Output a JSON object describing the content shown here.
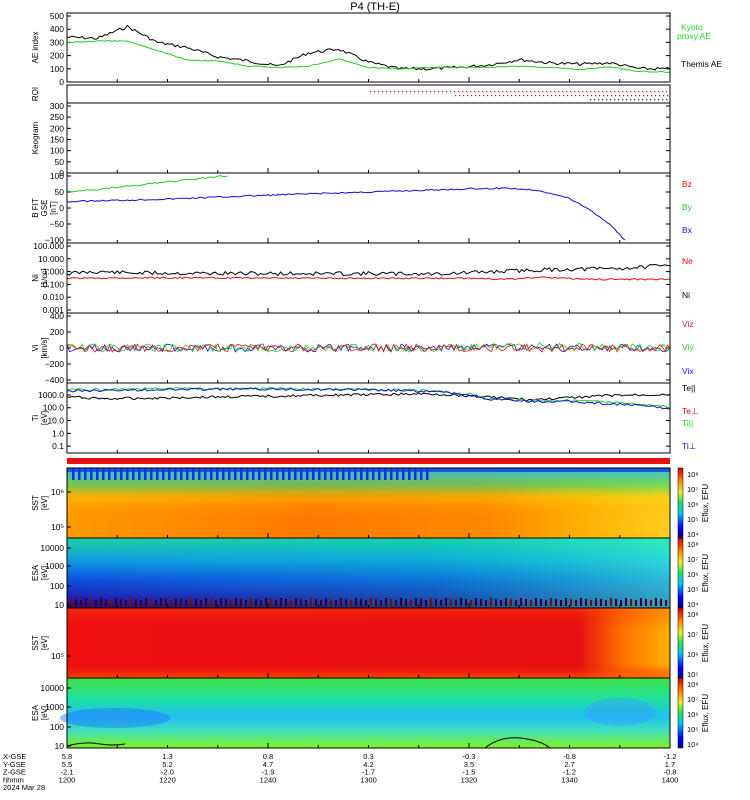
{
  "title": "P4 (TH-E)",
  "colors": {
    "black": "#000000",
    "green": "#22cc22",
    "red": "#e01010",
    "blue": "#1010dd",
    "kyoto": "#22dd22"
  },
  "footer": {
    "row_labels": [
      "X-GSE",
      "Y-GSE",
      "Z-GSE",
      "hhmm",
      "2024 Mar 28"
    ],
    "columns": [
      [
        "5.8",
        "5.5",
        "-2.1",
        "1200"
      ],
      [
        "1.3",
        "5.2",
        "-2.0",
        "1220"
      ],
      [
        "0.8",
        "4.7",
        "-1.9",
        "1240"
      ],
      [
        "0.3",
        "4.2",
        "-1.7",
        "1300"
      ],
      [
        "-0.3",
        "3.5",
        "-1.5",
        "1320"
      ],
      [
        "-0.8",
        "2.7",
        "-1.2",
        "1340"
      ],
      [
        "-1.2",
        "1.7",
        "-0.8",
        "1400"
      ]
    ]
  },
  "colorbar_label": "Eflux, EFU",
  "chart_data": [
    {
      "panel": "ae",
      "type": "line",
      "ylabel": "AE index",
      "ylim": [
        0,
        500
      ],
      "yticks": [
        "500",
        "400",
        "300",
        "200",
        "100",
        "0"
      ],
      "legend": [
        "Kyoto",
        "proxy AE",
        "Themis AE"
      ],
      "series": [
        {
          "name": "Themis AE",
          "color": "black",
          "x": [
            0,
            3,
            6,
            9,
            12,
            15,
            18,
            21,
            24,
            27,
            30,
            33,
            36,
            39,
            42,
            45,
            48,
            51,
            54,
            57,
            60
          ],
          "values": [
            340,
            330,
            420,
            300,
            260,
            190,
            160,
            120,
            220,
            250,
            150,
            100,
            100,
            110,
            130,
            170,
            145,
            135,
            145,
            100,
            100
          ]
        },
        {
          "name": "Kyoto proxy AE",
          "color": "green",
          "x": [
            0,
            3,
            6,
            9,
            12,
            15,
            18,
            21,
            24,
            27,
            30,
            33,
            36,
            39,
            42,
            45,
            48,
            51,
            54,
            57,
            60
          ],
          "values": [
            300,
            310,
            310,
            240,
            165,
            160,
            120,
            110,
            120,
            175,
            110,
            100,
            110,
            110,
            110,
            120,
            110,
            95,
            115,
            80,
            75
          ]
        }
      ]
    },
    {
      "panel": "roi",
      "type": "scatter",
      "ylabel": "ROI",
      "ylim": [
        0,
        1
      ],
      "yticks": []
    },
    {
      "panel": "keogram",
      "type": "heatmap",
      "ylabel": "Keogram",
      "ylim": [
        0,
        300
      ],
      "yticks": [
        "300",
        "250",
        "200",
        "150",
        "100",
        "50",
        "0"
      ]
    },
    {
      "panel": "b",
      "type": "line",
      "ylabel": "B FIT GSE [nT]",
      "ylim": [
        -100,
        100
      ],
      "yticks": [
        "100",
        "50",
        "0",
        "−50",
        "−100"
      ],
      "legend": [
        "Bz",
        "By",
        "Bx"
      ],
      "series": [
        {
          "name": "Bz",
          "color": "red",
          "x": [
            0,
            60
          ],
          "values": [
            0,
            0
          ]
        },
        {
          "name": "By",
          "color": "green",
          "x": [
            0,
            3,
            6,
            9,
            12,
            15,
            16
          ],
          "values": [
            50,
            58,
            68,
            78,
            88,
            98,
            104
          ]
        },
        {
          "name": "Bx",
          "color": "blue",
          "x": [
            0,
            10,
            20,
            30,
            40,
            44,
            47,
            50,
            52,
            54,
            55.5
          ],
          "values": [
            20,
            28,
            40,
            50,
            60,
            62,
            55,
            30,
            -5,
            -50,
            -100
          ]
        }
      ]
    },
    {
      "panel": "ni",
      "type": "line",
      "ylabel": "Ni [1/cc]",
      "yscale": "log",
      "ylim": [
        0.001,
        100
      ],
      "yticks": [
        "100.000",
        "10.000",
        "1.000",
        "0.100",
        "0.010",
        "0.001"
      ],
      "legend": [
        "Ne",
        "Ni"
      ],
      "series": [
        {
          "name": "Ni",
          "color": "black",
          "x": [
            0,
            3,
            6,
            12,
            18,
            24,
            30,
            36,
            40,
            44,
            48,
            52,
            56,
            60
          ],
          "values": [
            0.7,
            1.0,
            0.8,
            0.75,
            0.7,
            0.7,
            0.7,
            0.65,
            0.8,
            1.1,
            1.4,
            1.6,
            1.9,
            3.0
          ]
        },
        {
          "name": "Ne",
          "color": "red",
          "x": [
            0,
            5,
            15,
            30,
            40,
            44,
            47,
            52,
            60
          ],
          "values": [
            0.3,
            0.33,
            0.32,
            0.3,
            0.3,
            0.25,
            0.35,
            0.25,
            0.25
          ]
        }
      ]
    },
    {
      "panel": "vi",
      "type": "line",
      "ylabel": "Vi [km/s]",
      "ylim": [
        -400,
        400
      ],
      "yticks": [
        "400",
        "200",
        "0",
        "−200",
        "−400"
      ],
      "legend": [
        "Viz",
        "Viy",
        "Vix"
      ],
      "series": [
        {
          "name": "Viz",
          "color": "red",
          "x": [
            0,
            60
          ],
          "values": [
            0,
            0
          ]
        },
        {
          "name": "Viy",
          "color": "green",
          "x": [
            0,
            40,
            44,
            60
          ],
          "values": [
            0,
            0,
            20,
            10
          ]
        },
        {
          "name": "Vix",
          "color": "blue",
          "x": [
            0,
            60
          ],
          "values": [
            0,
            0
          ]
        }
      ]
    },
    {
      "panel": "ti",
      "type": "line",
      "ylabel": "Ti [eV]",
      "yscale": "log",
      "ylim": [
        0.05,
        5000
      ],
      "yticks": [
        "1000.0",
        "100.0",
        "10.0",
        "1.0",
        "0.1"
      ],
      "legend": [
        "Te||",
        "Te⊥",
        "Ti||",
        "Ti⊥"
      ],
      "series": [
        {
          "name": "Te||",
          "color": "black",
          "x": [
            0,
            4,
            10,
            20,
            28,
            36,
            42,
            46,
            50,
            54,
            58,
            60
          ],
          "values": [
            700,
            500,
            600,
            800,
            1000,
            1200,
            700,
            400,
            600,
            900,
            1000,
            1100
          ]
        },
        {
          "name": "Ti||",
          "color": "green",
          "x": [
            0,
            4,
            10,
            20,
            28,
            36,
            40,
            42,
            46,
            50,
            54,
            58,
            60
          ],
          "values": [
            2500,
            2600,
            3000,
            3100,
            2800,
            2000,
            1100,
            500,
            350,
            380,
            250,
            160,
            100
          ]
        },
        {
          "name": "Ti⊥",
          "color": "blue",
          "x": [
            0,
            4,
            10,
            20,
            28,
            36,
            40,
            42,
            46,
            50,
            54,
            58,
            60
          ],
          "values": [
            2000,
            2300,
            2700,
            2900,
            2600,
            1900,
            1000,
            450,
            300,
            300,
            200,
            130,
            80
          ]
        }
      ]
    },
    {
      "panel": "sst_e",
      "type": "heatmap",
      "ylabel": "SST [eV]",
      "yticks": [
        "10⁶",
        "10⁵"
      ],
      "colorbar": [
        "10⁸",
        "10⁷",
        "10⁶",
        "10⁵",
        "10⁴"
      ]
    },
    {
      "panel": "esa_e",
      "type": "heatmap",
      "ylabel": "ESA [eV]",
      "yticks": [
        "10000",
        "1000",
        "100",
        "10"
      ],
      "colorbar": [
        "10⁸",
        "10⁷",
        "10⁶",
        "10⁵",
        "10⁴"
      ]
    },
    {
      "panel": "sst_i",
      "type": "heatmap",
      "ylabel": "SST [eV]",
      "yticks": [
        "10⁵"
      ],
      "colorbar": [
        "10⁸",
        "10⁷",
        "10⁶",
        "10⁵"
      ]
    },
    {
      "panel": "esa_i",
      "type": "heatmap",
      "ylabel": "ESA [eV]",
      "yticks": [
        "10000",
        "1000",
        "100",
        "10"
      ],
      "colorbar": [
        "10⁸",
        "10⁷",
        "10⁶",
        "10⁵",
        "10⁴"
      ]
    }
  ]
}
